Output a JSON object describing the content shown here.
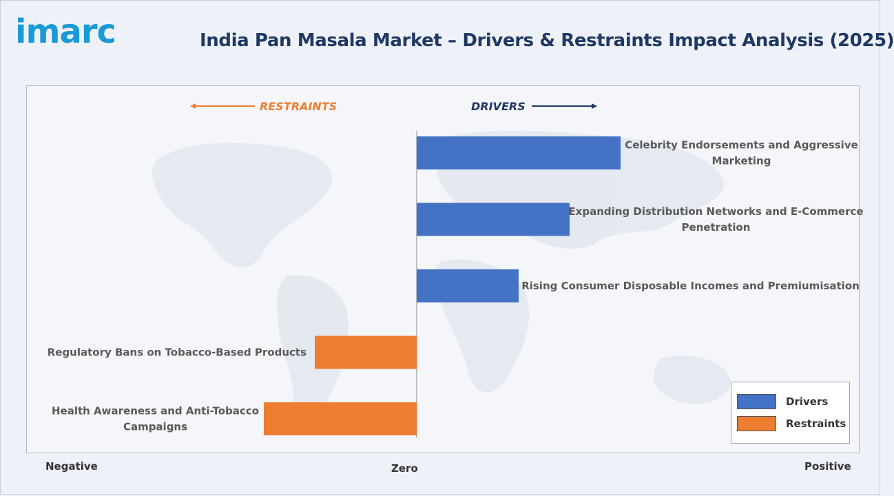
{
  "brand": {
    "logo_text": "imarc"
  },
  "header": {
    "title": "India Pan Masala Market – Drivers & Restraints Impact Analysis (2025)"
  },
  "colors": {
    "drivers": "#4472c4",
    "restraints": "#ed7d31",
    "restraints_text": "#ed7d31",
    "drivers_text": "#1f3864"
  },
  "directions": {
    "restraints_label": "RESTRAINTS",
    "drivers_label": "DRIVERS"
  },
  "axis": {
    "negative_label": "Negative",
    "zero_label": "Zero",
    "positive_label": "Positive"
  },
  "legend": {
    "drivers_label": "Drivers",
    "restraints_label": "Restraints"
  },
  "chart_data": {
    "type": "bar",
    "orientation": "horizontal",
    "title": "India Pan Masala Market – Drivers & Restraints Impact Analysis (2025)",
    "xlim": [
      -3,
      4
    ],
    "grid": false,
    "legend_position": "bottom-right",
    "bars": [
      {
        "label": "Celebrity Endorsements and Aggressive Marketing",
        "label_lines": [
          "Celebrity Endorsements and Aggressive",
          "Marketing"
        ],
        "value": 4,
        "group": "Drivers"
      },
      {
        "label": "Expanding Distribution Networks and E-Commerce Penetration",
        "label_lines": [
          "Expanding Distribution Networks and E-Commerce",
          "Penetration"
        ],
        "value": 3,
        "group": "Drivers"
      },
      {
        "label": "Rising Consumer Disposable Incomes and Premiumisation",
        "label_lines": [
          "Rising Consumer Disposable Incomes and Premiumisation"
        ],
        "value": 2,
        "group": "Drivers"
      },
      {
        "label": "Regulatory Bans on Tobacco-Based Products",
        "label_lines": [
          "Regulatory Bans on Tobacco-Based Products"
        ],
        "value": -2,
        "group": "Restraints"
      },
      {
        "label": "Health Awareness and Anti-Tobacco Campaigns",
        "label_lines": [
          "Health Awareness and Anti-Tobacco",
          "Campaigns"
        ],
        "value": -3,
        "group": "Restraints"
      }
    ],
    "series": [
      {
        "name": "Drivers"
      },
      {
        "name": "Restraints"
      }
    ]
  }
}
